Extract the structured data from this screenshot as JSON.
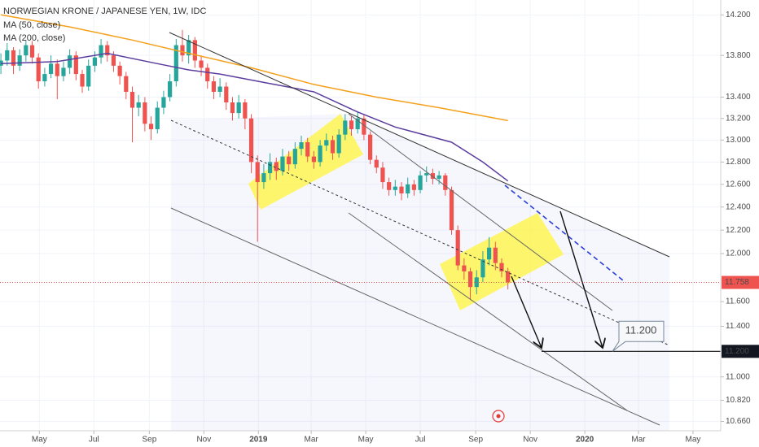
{
  "chart_data": {
    "type": "candlestick",
    "title": "NORWEGIAN KRONE / JAPANESE YEN, 1W, IDC",
    "log_scale": true,
    "up_color": "#26a69a",
    "down_color": "#ef5350",
    "xlim": [
      "2018-03-18",
      "2020-06-01"
    ],
    "xticks": [
      {
        "value": "2018-05-01",
        "label": "May"
      },
      {
        "value": "2018-07-01",
        "label": "Jul"
      },
      {
        "value": "2018-09-01",
        "label": "Sep"
      },
      {
        "value": "2018-11-01",
        "label": "Nov"
      },
      {
        "value": "2019-01-01",
        "label": "2019"
      },
      {
        "value": "2019-03-01",
        "label": "Mar"
      },
      {
        "value": "2019-05-01",
        "label": "May"
      },
      {
        "value": "2019-07-01",
        "label": "Jul"
      },
      {
        "value": "2019-09-01",
        "label": "Sep"
      },
      {
        "value": "2019-11-01",
        "label": "Nov"
      },
      {
        "value": "2020-01-01",
        "label": "2020"
      },
      {
        "value": "2020-03-01",
        "label": "Mar"
      },
      {
        "value": "2020-05-01",
        "label": "May"
      }
    ],
    "ylim": [
      10.59,
      14.35
    ],
    "yticks": [
      {
        "value": 14.2,
        "label": "14.200"
      },
      {
        "value": 13.8,
        "label": "13.800"
      },
      {
        "value": 13.4,
        "label": "13.400"
      },
      {
        "value": 13.2,
        "label": "13.200"
      },
      {
        "value": 13.0,
        "label": "13.000"
      },
      {
        "value": 12.8,
        "label": "12.800"
      },
      {
        "value": 12.6,
        "label": "12.600"
      },
      {
        "value": 12.4,
        "label": "12.400"
      },
      {
        "value": 12.2,
        "label": "12.200"
      },
      {
        "value": 12.0,
        "label": "12.000"
      },
      {
        "value": 11.6,
        "label": "11.600"
      },
      {
        "value": 11.4,
        "label": "11.400"
      },
      {
        "value": 11.0,
        "label": "11.000"
      },
      {
        "value": 10.82,
        "label": "10.820"
      },
      {
        "value": 10.66,
        "label": "10.660"
      }
    ],
    "last_price": {
      "value": 11.758,
      "label": "11.758"
    },
    "target": {
      "value": 11.2,
      "label": "11.200"
    },
    "x": [
      "2018-03-19",
      "2018-03-26",
      "2018-04-02",
      "2018-04-09",
      "2018-04-16",
      "2018-04-23",
      "2018-04-30",
      "2018-05-07",
      "2018-05-14",
      "2018-05-21",
      "2018-05-28",
      "2018-06-04",
      "2018-06-11",
      "2018-06-18",
      "2018-06-25",
      "2018-07-02",
      "2018-07-09",
      "2018-07-16",
      "2018-07-23",
      "2018-07-30",
      "2018-08-06",
      "2018-08-13",
      "2018-08-20",
      "2018-08-27",
      "2018-09-03",
      "2018-09-10",
      "2018-09-17",
      "2018-09-24",
      "2018-10-01",
      "2018-10-08",
      "2018-10-15",
      "2018-10-22",
      "2018-10-29",
      "2018-11-05",
      "2018-11-12",
      "2018-11-19",
      "2018-11-26",
      "2018-12-03",
      "2018-12-10",
      "2018-12-17",
      "2018-12-24",
      "2018-12-31",
      "2019-01-07",
      "2019-01-14",
      "2019-01-21",
      "2019-01-28",
      "2019-02-04",
      "2019-02-11",
      "2019-02-18",
      "2019-02-25",
      "2019-03-04",
      "2019-03-11",
      "2019-03-18",
      "2019-03-25",
      "2019-04-01",
      "2019-04-08",
      "2019-04-15",
      "2019-04-22",
      "2019-04-29",
      "2019-05-06",
      "2019-05-13",
      "2019-05-20",
      "2019-05-27",
      "2019-06-03",
      "2019-06-10",
      "2019-06-17",
      "2019-06-24",
      "2019-07-01",
      "2019-07-08",
      "2019-07-15",
      "2019-07-22",
      "2019-07-29",
      "2019-08-05",
      "2019-08-12",
      "2019-08-19",
      "2019-08-26",
      "2019-09-02",
      "2019-09-09",
      "2019-09-16",
      "2019-09-23",
      "2019-09-30",
      "2019-10-07"
    ],
    "ohlc": [
      [
        13.7,
        13.82,
        13.62,
        13.75
      ],
      [
        13.75,
        13.92,
        13.7,
        13.85
      ],
      [
        13.85,
        13.88,
        13.62,
        13.7
      ],
      [
        13.7,
        13.86,
        13.65,
        13.8
      ],
      [
        13.8,
        13.95,
        13.74,
        13.9
      ],
      [
        13.9,
        13.94,
        13.72,
        13.78
      ],
      [
        13.78,
        13.82,
        13.48,
        13.55
      ],
      [
        13.55,
        13.68,
        13.5,
        13.62
      ],
      [
        13.62,
        13.8,
        13.58,
        13.72
      ],
      [
        13.72,
        13.76,
        13.38,
        13.6
      ],
      [
        13.6,
        13.74,
        13.55,
        13.68
      ],
      [
        13.68,
        13.86,
        13.62,
        13.8
      ],
      [
        13.8,
        13.84,
        13.56,
        13.62
      ],
      [
        13.62,
        13.66,
        13.44,
        13.5
      ],
      [
        13.5,
        13.76,
        13.46,
        13.7
      ],
      [
        13.7,
        13.84,
        13.64,
        13.78
      ],
      [
        13.78,
        13.96,
        13.72,
        13.9
      ],
      [
        13.9,
        13.94,
        13.74,
        13.8
      ],
      [
        13.8,
        13.84,
        13.64,
        13.7
      ],
      [
        13.7,
        13.74,
        13.52,
        13.6
      ],
      [
        13.6,
        13.64,
        13.38,
        13.45
      ],
      [
        13.45,
        13.5,
        12.98,
        13.3
      ],
      [
        13.3,
        13.42,
        13.22,
        13.35
      ],
      [
        13.35,
        13.4,
        13.08,
        13.15
      ],
      [
        13.15,
        13.22,
        13.0,
        13.1
      ],
      [
        13.1,
        13.36,
        13.06,
        13.3
      ],
      [
        13.3,
        13.46,
        13.24,
        13.4
      ],
      [
        13.4,
        13.62,
        13.36,
        13.55
      ],
      [
        13.55,
        13.96,
        13.5,
        13.9
      ],
      [
        13.9,
        14.05,
        13.74,
        13.8
      ],
      [
        13.8,
        14.0,
        13.72,
        13.95
      ],
      [
        13.95,
        13.98,
        13.68,
        13.75
      ],
      [
        13.75,
        13.8,
        13.6,
        13.68
      ],
      [
        13.68,
        13.72,
        13.48,
        13.55
      ],
      [
        13.55,
        13.6,
        13.38,
        13.45
      ],
      [
        13.45,
        13.58,
        13.4,
        13.5
      ],
      [
        13.5,
        13.54,
        13.28,
        13.35
      ],
      [
        13.35,
        13.4,
        13.18,
        13.25
      ],
      [
        13.25,
        13.42,
        13.2,
        13.35
      ],
      [
        13.35,
        13.38,
        13.1,
        13.2
      ],
      [
        13.2,
        13.24,
        12.7,
        12.8
      ],
      [
        12.8,
        12.86,
        12.1,
        12.62
      ],
      [
        12.62,
        12.78,
        12.56,
        12.7
      ],
      [
        12.7,
        12.88,
        12.64,
        12.8
      ],
      [
        12.8,
        12.84,
        12.64,
        12.72
      ],
      [
        12.72,
        12.92,
        12.68,
        12.85
      ],
      [
        12.85,
        12.9,
        12.72,
        12.78
      ],
      [
        12.78,
        12.98,
        12.74,
        12.92
      ],
      [
        12.92,
        13.04,
        12.86,
        12.98
      ],
      [
        12.98,
        13.02,
        12.8,
        12.85
      ],
      [
        12.85,
        12.9,
        12.74,
        12.8
      ],
      [
        12.8,
        13.0,
        12.76,
        12.95
      ],
      [
        12.95,
        13.06,
        12.9,
        13.0
      ],
      [
        13.0,
        13.04,
        12.82,
        12.88
      ],
      [
        12.88,
        13.1,
        12.84,
        13.05
      ],
      [
        13.05,
        13.24,
        13.0,
        13.18
      ],
      [
        13.18,
        13.22,
        13.04,
        13.1
      ],
      [
        13.1,
        13.26,
        13.06,
        13.2
      ],
      [
        13.2,
        13.24,
        13.0,
        13.05
      ],
      [
        13.05,
        13.08,
        12.78,
        12.82
      ],
      [
        12.82,
        12.86,
        12.7,
        12.75
      ],
      [
        12.75,
        12.8,
        12.56,
        12.62
      ],
      [
        12.62,
        12.66,
        12.5,
        12.55
      ],
      [
        12.55,
        12.64,
        12.5,
        12.58
      ],
      [
        12.58,
        12.62,
        12.46,
        12.52
      ],
      [
        12.52,
        12.66,
        12.48,
        12.6
      ],
      [
        12.6,
        12.64,
        12.5,
        12.55
      ],
      [
        12.55,
        12.72,
        12.52,
        12.68
      ],
      [
        12.68,
        12.76,
        12.62,
        12.7
      ],
      [
        12.7,
        12.74,
        12.6,
        12.65
      ],
      [
        12.65,
        12.72,
        12.6,
        12.68
      ],
      [
        12.68,
        12.7,
        12.5,
        12.55
      ],
      [
        12.55,
        12.58,
        12.16,
        12.2
      ],
      [
        12.2,
        12.24,
        11.86,
        11.9
      ],
      [
        11.9,
        11.96,
        11.78,
        11.85
      ],
      [
        11.85,
        11.88,
        11.62,
        11.72
      ],
      [
        11.72,
        11.86,
        11.66,
        11.8
      ],
      [
        11.8,
        12.02,
        11.76,
        11.95
      ],
      [
        11.95,
        12.14,
        11.9,
        12.05
      ],
      [
        12.05,
        12.1,
        11.86,
        11.92
      ],
      [
        11.92,
        11.96,
        11.8,
        11.85
      ],
      [
        11.85,
        11.88,
        11.7,
        11.76
      ]
    ],
    "series": [
      {
        "name": "MA (50, close)",
        "color": "#5b3d9e",
        "x": [
          "2018-03-19",
          "2018-05-21",
          "2018-07-16",
          "2018-09-10",
          "2018-10-15",
          "2018-11-19",
          "2019-01-01",
          "2019-03-04",
          "2019-04-22",
          "2019-06-03",
          "2019-08-05",
          "2019-09-09",
          "2019-10-07"
        ],
        "values": [
          13.72,
          13.74,
          13.82,
          13.72,
          13.66,
          13.62,
          13.55,
          13.45,
          13.26,
          13.12,
          12.98,
          12.8,
          12.63
        ]
      },
      {
        "name": "MA (200, close)",
        "color": "#f5a01a",
        "x": [
          "2018-03-19",
          "2018-06-04",
          "2018-08-13",
          "2018-10-15",
          "2018-12-24",
          "2019-03-04",
          "2019-05-13",
          "2019-07-22",
          "2019-10-07"
        ],
        "values": [
          14.2,
          14.08,
          13.95,
          13.82,
          13.68,
          13.52,
          13.4,
          13.3,
          13.18
        ]
      }
    ]
  }
}
